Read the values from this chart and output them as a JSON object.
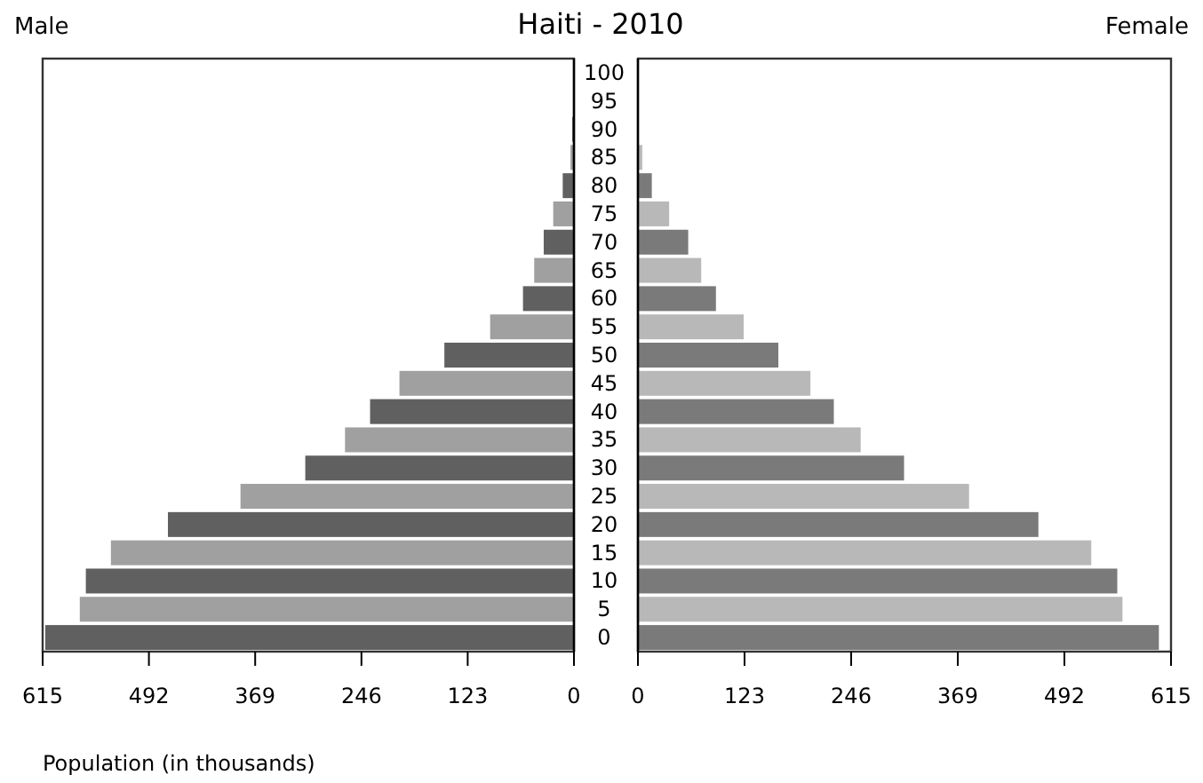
{
  "chart_data": [
    {
      "type": "bar",
      "orientation": "horizontal",
      "title": "Male",
      "annotations": [
        "Haiti - 2010"
      ],
      "xlabel": "Population (in thousands)",
      "categories": [
        "100",
        "95",
        "90",
        "85",
        "80",
        "75",
        "70",
        "65",
        "60",
        "55",
        "50",
        "45",
        "40",
        "35",
        "30",
        "25",
        "20",
        "15",
        "10",
        "5",
        "0"
      ],
      "values": [
        1,
        1,
        2,
        4,
        13,
        24,
        35,
        46,
        59,
        97,
        150,
        202,
        236,
        265,
        311,
        386,
        470,
        536,
        565,
        572,
        612
      ],
      "colors": [
        "#606060",
        "#a0a0a0",
        "#606060",
        "#a0a0a0",
        "#606060",
        "#a0a0a0",
        "#606060",
        "#a0a0a0",
        "#606060",
        "#a0a0a0",
        "#606060",
        "#a0a0a0",
        "#606060",
        "#a0a0a0",
        "#606060",
        "#a0a0a0",
        "#606060",
        "#a0a0a0",
        "#606060",
        "#a0a0a0",
        "#606060"
      ],
      "xlim": [
        615,
        0
      ],
      "xticks": [
        615,
        492,
        369,
        246,
        123,
        0
      ]
    },
    {
      "type": "bar",
      "orientation": "horizontal",
      "title": "Female",
      "tick_labels": "x",
      "categories": [
        "100",
        "95",
        "90",
        "85",
        "80",
        "75",
        "70",
        "65",
        "60",
        "55",
        "50",
        "45",
        "40",
        "35",
        "30",
        "25",
        "20",
        "15",
        "10",
        "5",
        "0"
      ],
      "values": [
        0,
        0,
        1,
        5,
        16,
        36,
        58,
        73,
        90,
        122,
        162,
        199,
        226,
        257,
        307,
        382,
        462,
        523,
        553,
        559,
        601
      ],
      "colors": [
        "#7a7a7a",
        "#b8b8b8",
        "#7a7a7a",
        "#b8b8b8",
        "#7a7a7a",
        "#b8b8b8",
        "#7a7a7a",
        "#b8b8b8",
        "#7a7a7a",
        "#b8b8b8",
        "#7a7a7a",
        "#b8b8b8",
        "#7a7a7a",
        "#b8b8b8",
        "#7a7a7a",
        "#b8b8b8",
        "#7a7a7a",
        "#b8b8b8",
        "#7a7a7a",
        "#b8b8b8",
        "#7a7a7a"
      ],
      "xlim": [
        0,
        615
      ],
      "xticks": [
        0,
        123,
        246,
        369,
        492,
        615
      ]
    }
  ]
}
